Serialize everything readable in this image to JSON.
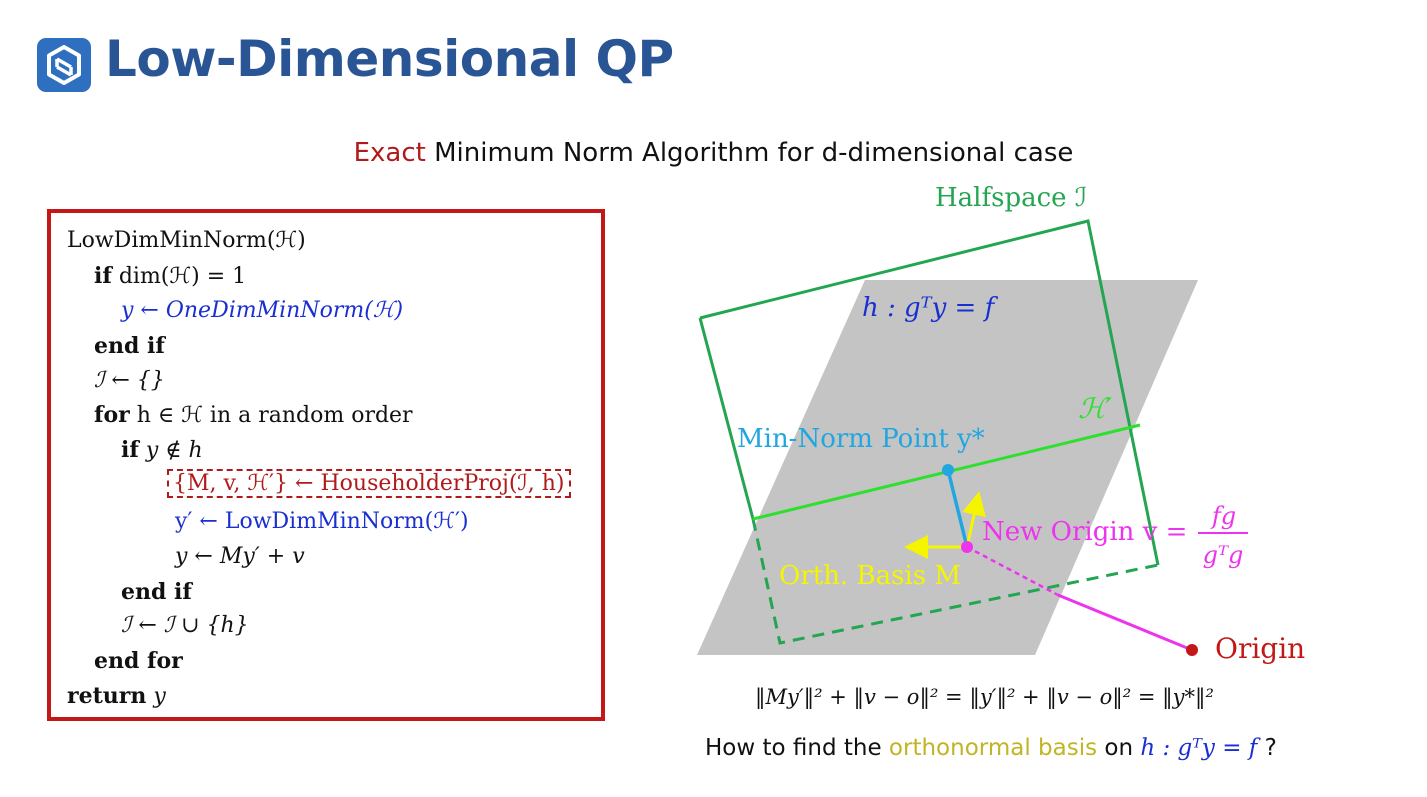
{
  "header": {
    "title": "Low-Dimensional QP",
    "logo_icon": "cube-logo-icon"
  },
  "subtitle": {
    "accent": "Exact",
    "rest": " Minimum Norm Algorithm for d-dimensional case"
  },
  "algorithm": {
    "l1": "LowDimMinNorm(ℋ)",
    "l2_kw": "if",
    "l2_rest": " dim(ℋ) = 1",
    "l3": "y ← OneDimMinNorm(ℋ)",
    "l4": "end if",
    "l5": "ℐ ← {}",
    "l6_kw": "for",
    "l6_rest": " h ∈ ℋ in a random order",
    "l7_kw": "if",
    "l7_rest": " y ∉ h",
    "l8": "{M, v, ℋ′} ← HouseholderProj(ℐ, h)",
    "l9": "y′ ← LowDimMinNorm(ℋ′)",
    "l10": "y ← My′ + v",
    "l11": "end if",
    "l12": "ℐ ← ℐ ∪ {h}",
    "l13": "end for",
    "l14_kw": "return",
    "l14_rest": " y"
  },
  "diagram": {
    "halfspace": "Halfspace ℐ",
    "plane_eq": "h :  gᵀy = f",
    "h_prime": "ℋ′",
    "min_norm": "Min-Norm Point y*",
    "new_origin": "New Origin v =",
    "frac_num": "fg",
    "frac_den": "gᵀg",
    "orth_basis": "Orth. Basis M",
    "origin": "Origin",
    "colors": {
      "halfspace": "#23a552",
      "plane": "#c4c4c4",
      "h_prime": "#2ee02e",
      "min_norm": "#22a6e0",
      "new_origin": "#ee33ee",
      "basis": "#f5f500",
      "origin": "#c41818"
    }
  },
  "equation": "‖My′‖² + ‖v − o‖² = ‖y′‖² + ‖v − o‖² = ‖y*‖²",
  "question": {
    "pre": "How to find the ",
    "accent": "orthonormal basis",
    "mid": " on ",
    "math": "h :  gᵀy = f",
    "end": " ?"
  }
}
